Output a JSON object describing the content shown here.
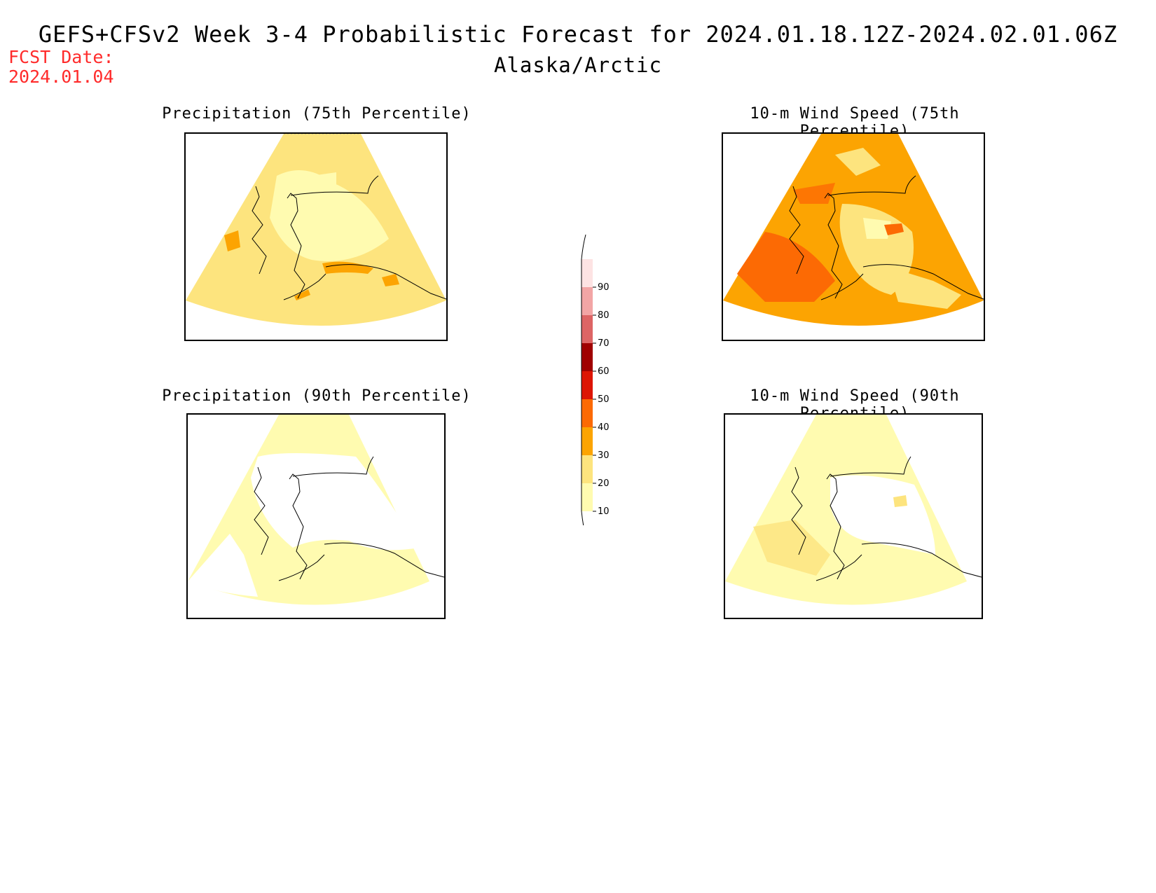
{
  "header": {
    "title": "GEFS+CFSv2 Week 3-4 Probabilistic Forecast for 2024.01.18.12Z-2024.02.01.06Z",
    "region": "Alaska/Arctic",
    "fcst_label": "FCST Date:",
    "fcst_date": "2024.01.04",
    "fcst_color": "#ff2b2b"
  },
  "panels": [
    {
      "id": "precip75",
      "title": "Precipitation (75th Percentile)"
    },
    {
      "id": "wind75",
      "title": "10-m Wind Speed (75th Percentile)"
    },
    {
      "id": "precip90",
      "title": "Precipitation (90th Percentile)"
    },
    {
      "id": "wind90",
      "title": "10-m Wind Speed (90th Percentile)"
    }
  ],
  "colorbar": {
    "levels": [
      "10",
      "20",
      "30",
      "40",
      "50",
      "60",
      "70",
      "80",
      "90"
    ],
    "colors": [
      "#fffbb0",
      "#fde47e",
      "#fca402",
      "#fc6a04",
      "#dd1504",
      "#a00000",
      "#dd6565",
      "#f2a5a5",
      "#fde3e3"
    ]
  }
}
